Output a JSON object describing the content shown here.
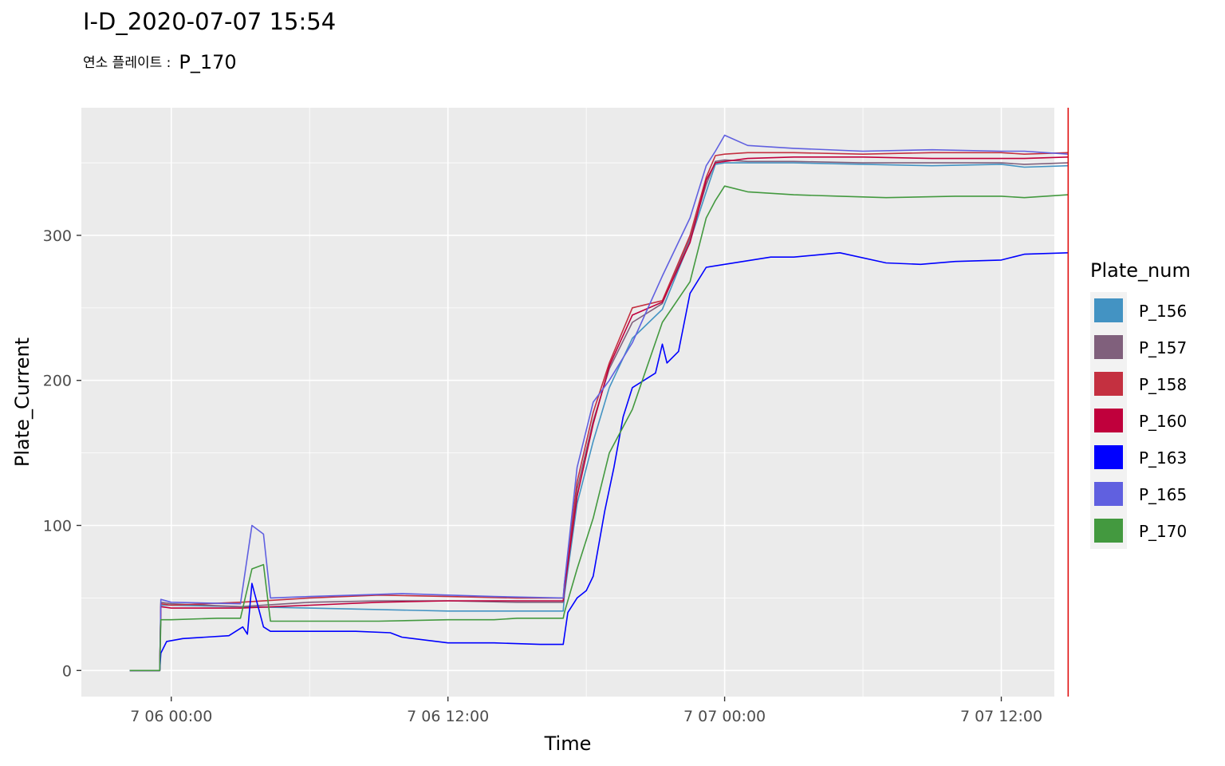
{
  "title": "I-D_2020-07-07 15:54",
  "subtitle": {
    "label": "연소 플레이트 :",
    "value": "P_170"
  },
  "chart_data": {
    "type": "line",
    "xlabel": "Time",
    "ylabel": "Plate_Current",
    "x_unit": "hours since 2020-07-05 00:00",
    "xlim": [
      20.1,
      62.3
    ],
    "ylim": [
      -18,
      388
    ],
    "x_ticks": [
      {
        "value": 24,
        "label": "7 06 00:00"
      },
      {
        "value": 36,
        "label": "7 06 12:00"
      },
      {
        "value": 48,
        "label": "7 07 00:00"
      },
      {
        "value": 60,
        "label": "7 07 12:00"
      }
    ],
    "y_ticks": [
      0,
      100,
      200,
      300
    ],
    "grid": true,
    "vline": {
      "x": 62.9,
      "color": "#e01010"
    },
    "legend": {
      "title": "Plate_num",
      "position": "right"
    },
    "series": [
      {
        "name": "P_156",
        "color": "#4393c3",
        "points": [
          [
            22.2,
            0
          ],
          [
            23.5,
            0
          ],
          [
            23.55,
            45
          ],
          [
            24,
            45
          ],
          [
            27,
            44
          ],
          [
            30,
            43
          ],
          [
            33,
            42
          ],
          [
            36,
            41
          ],
          [
            39,
            41
          ],
          [
            41,
            41
          ],
          [
            41.05,
            52
          ],
          [
            41.6,
            115
          ],
          [
            42.3,
            158
          ],
          [
            43,
            195
          ],
          [
            44,
            229
          ],
          [
            45.3,
            249
          ],
          [
            46.5,
            296
          ],
          [
            47.2,
            330
          ],
          [
            47.6,
            349
          ],
          [
            48,
            350
          ],
          [
            49,
            350
          ],
          [
            51,
            350
          ],
          [
            54,
            349
          ],
          [
            57,
            348
          ],
          [
            60,
            349
          ],
          [
            61,
            347
          ],
          [
            62.9,
            348
          ]
        ]
      },
      {
        "name": "P_157",
        "color": "#80607c",
        "points": [
          [
            22.2,
            0
          ],
          [
            23.5,
            0
          ],
          [
            23.55,
            47
          ],
          [
            24,
            46
          ],
          [
            27,
            44
          ],
          [
            30,
            47
          ],
          [
            33,
            48
          ],
          [
            36,
            48
          ],
          [
            39,
            47
          ],
          [
            41,
            47
          ],
          [
            41.05,
            55
          ],
          [
            41.6,
            125
          ],
          [
            42.3,
            172
          ],
          [
            43,
            208
          ],
          [
            44,
            240
          ],
          [
            45.3,
            253
          ],
          [
            46.5,
            298
          ],
          [
            47.2,
            335
          ],
          [
            47.6,
            351
          ],
          [
            48,
            352
          ],
          [
            49,
            351
          ],
          [
            51,
            351
          ],
          [
            54,
            350
          ],
          [
            57,
            350
          ],
          [
            60,
            350
          ],
          [
            61,
            349
          ],
          [
            62.9,
            350
          ]
        ]
      },
      {
        "name": "P_158",
        "color": "#c43040",
        "points": [
          [
            22.2,
            0
          ],
          [
            23.5,
            0
          ],
          [
            23.55,
            46
          ],
          [
            24,
            45
          ],
          [
            27,
            47
          ],
          [
            30,
            50
          ],
          [
            33,
            52
          ],
          [
            36,
            51
          ],
          [
            39,
            50
          ],
          [
            41,
            50
          ],
          [
            41.05,
            60
          ],
          [
            41.6,
            130
          ],
          [
            42.3,
            178
          ],
          [
            43,
            212
          ],
          [
            44,
            250
          ],
          [
            45.3,
            255
          ],
          [
            46.5,
            300
          ],
          [
            47.2,
            340
          ],
          [
            47.6,
            355
          ],
          [
            48,
            356
          ],
          [
            49,
            357
          ],
          [
            51,
            357
          ],
          [
            54,
            356
          ],
          [
            57,
            357
          ],
          [
            60,
            357
          ],
          [
            61,
            356
          ],
          [
            62.9,
            357
          ]
        ]
      },
      {
        "name": "P_160",
        "color": "#c0003c",
        "points": [
          [
            22.2,
            0
          ],
          [
            23.5,
            0
          ],
          [
            23.55,
            44
          ],
          [
            24,
            43
          ],
          [
            27,
            43
          ],
          [
            30,
            45
          ],
          [
            33,
            47
          ],
          [
            36,
            48
          ],
          [
            39,
            48
          ],
          [
            41,
            48
          ],
          [
            41.05,
            56
          ],
          [
            41.6,
            120
          ],
          [
            42.3,
            170
          ],
          [
            43,
            210
          ],
          [
            44,
            245
          ],
          [
            45.3,
            254
          ],
          [
            46.5,
            295
          ],
          [
            47.2,
            338
          ],
          [
            47.6,
            350
          ],
          [
            48,
            351
          ],
          [
            49,
            353
          ],
          [
            51,
            354
          ],
          [
            54,
            354
          ],
          [
            57,
            353
          ],
          [
            60,
            353
          ],
          [
            61,
            353
          ],
          [
            62.9,
            354
          ]
        ]
      },
      {
        "name": "P_163",
        "color": "#0000ff",
        "points": [
          [
            22.2,
            0
          ],
          [
            23.5,
            0
          ],
          [
            23.55,
            12
          ],
          [
            23.8,
            20
          ],
          [
            24.5,
            22
          ],
          [
            25.5,
            23
          ],
          [
            26.5,
            24
          ],
          [
            27.1,
            30
          ],
          [
            27.3,
            25
          ],
          [
            27.5,
            60
          ],
          [
            28,
            30
          ],
          [
            28.3,
            27
          ],
          [
            30,
            27
          ],
          [
            32,
            27
          ],
          [
            33.5,
            26
          ],
          [
            34,
            23
          ],
          [
            36,
            19
          ],
          [
            38,
            19
          ],
          [
            40,
            18
          ],
          [
            41,
            18
          ],
          [
            41.2,
            40
          ],
          [
            41.6,
            50
          ],
          [
            42,
            55
          ],
          [
            42.3,
            65
          ],
          [
            42.8,
            110
          ],
          [
            43.2,
            140
          ],
          [
            43.6,
            175
          ],
          [
            44,
            195
          ],
          [
            44.5,
            200
          ],
          [
            45,
            205
          ],
          [
            45.3,
            225
          ],
          [
            45.5,
            212
          ],
          [
            46,
            220
          ],
          [
            46.5,
            260
          ],
          [
            47.2,
            278
          ],
          [
            48,
            280
          ],
          [
            50,
            285
          ],
          [
            51,
            285
          ],
          [
            53,
            288
          ],
          [
            55,
            281
          ],
          [
            56.5,
            280
          ],
          [
            58,
            282
          ],
          [
            60,
            283
          ],
          [
            61,
            287
          ],
          [
            62.9,
            288
          ]
        ]
      },
      {
        "name": "P_165",
        "color": "#6060e0",
        "points": [
          [
            22.2,
            0
          ],
          [
            23.5,
            0
          ],
          [
            23.55,
            49
          ],
          [
            24,
            47
          ],
          [
            27,
            46
          ],
          [
            27.5,
            100
          ],
          [
            28,
            94
          ],
          [
            28.3,
            50
          ],
          [
            30,
            51
          ],
          [
            32,
            52
          ],
          [
            34,
            53
          ],
          [
            36,
            52
          ],
          [
            38,
            51
          ],
          [
            41,
            50
          ],
          [
            41.05,
            60
          ],
          [
            41.6,
            140
          ],
          [
            42.3,
            185
          ],
          [
            43,
            200
          ],
          [
            44,
            226
          ],
          [
            45.3,
            272
          ],
          [
            46.5,
            312
          ],
          [
            47.2,
            348
          ],
          [
            47.6,
            358
          ],
          [
            48,
            369
          ],
          [
            49,
            362
          ],
          [
            51,
            360
          ],
          [
            54,
            358
          ],
          [
            57,
            359
          ],
          [
            60,
            358
          ],
          [
            61,
            358
          ],
          [
            62.9,
            356
          ]
        ]
      },
      {
        "name": "P_170",
        "color": "#43993f",
        "points": [
          [
            22.2,
            0
          ],
          [
            23.5,
            0
          ],
          [
            23.55,
            35
          ],
          [
            24,
            35
          ],
          [
            26,
            36
          ],
          [
            27,
            36
          ],
          [
            27.5,
            70
          ],
          [
            28,
            73
          ],
          [
            28.3,
            34
          ],
          [
            30,
            34
          ],
          [
            33,
            34
          ],
          [
            36,
            35
          ],
          [
            38,
            35
          ],
          [
            39,
            36
          ],
          [
            41,
            36
          ],
          [
            41.05,
            40
          ],
          [
            41.6,
            70
          ],
          [
            42.3,
            105
          ],
          [
            43,
            150
          ],
          [
            44,
            180
          ],
          [
            45.3,
            240
          ],
          [
            46.5,
            268
          ],
          [
            47.2,
            312
          ],
          [
            47.6,
            324
          ],
          [
            48,
            334
          ],
          [
            49,
            330
          ],
          [
            51,
            328
          ],
          [
            53,
            327
          ],
          [
            55,
            326
          ],
          [
            58,
            327
          ],
          [
            60,
            327
          ],
          [
            61,
            326
          ],
          [
            62.9,
            328
          ]
        ]
      }
    ]
  }
}
